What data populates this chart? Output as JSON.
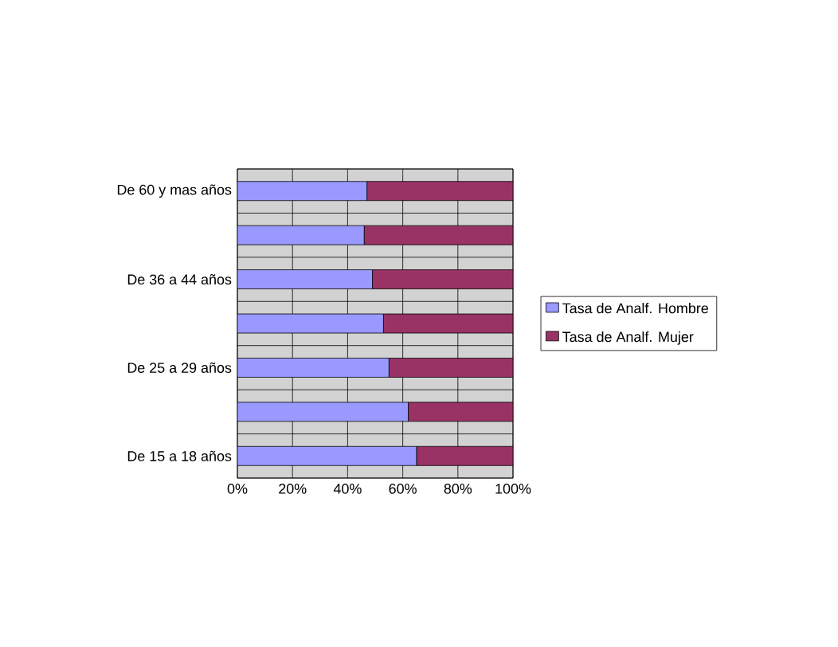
{
  "chart_data": {
    "type": "bar",
    "orientation": "horizontal",
    "stacked": true,
    "categories": [
      "De 60 y mas años",
      null,
      "De 36 a 44 años",
      null,
      "De 25 a 29 años",
      null,
      "De 15 a 18 años"
    ],
    "series": [
      {
        "name": "Tasa de Analf. Hombre",
        "color": "#9999ff",
        "values": [
          47,
          46,
          49,
          53,
          55,
          62,
          65
        ]
      },
      {
        "name": "Tasa de Analf. Mujer",
        "color": "#993366",
        "values": [
          53,
          54,
          51,
          47,
          45,
          38,
          35
        ]
      }
    ],
    "xlim": [
      0,
      100
    ],
    "xticks": [
      {
        "value": 0,
        "label": "0%"
      },
      {
        "value": 20,
        "label": "20%"
      },
      {
        "value": 40,
        "label": "40%"
      },
      {
        "value": 60,
        "label": "60%"
      },
      {
        "value": 80,
        "label": "80%"
      },
      {
        "value": 100,
        "label": "100%"
      }
    ],
    "grid": true,
    "legend": "right"
  }
}
